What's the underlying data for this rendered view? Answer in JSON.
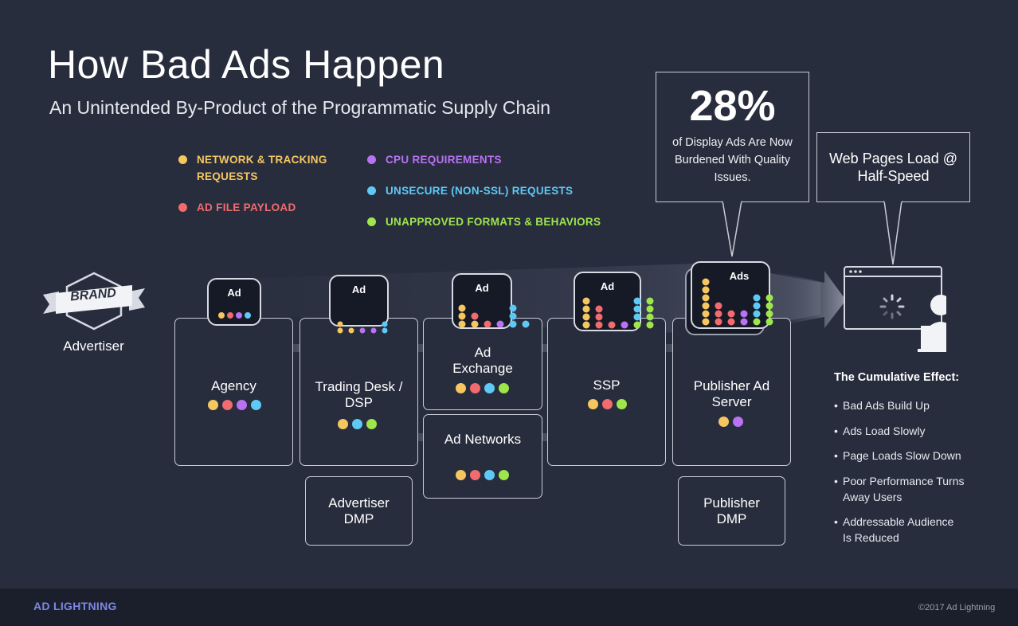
{
  "title": "How Bad Ads Happen",
  "subtitle": "An Unintended By-Product of the Programmatic Supply Chain",
  "colors": {
    "yellow": "#f6c760",
    "red": "#f26b6f",
    "purple": "#b872f2",
    "blue": "#5ec9f5",
    "green": "#9ee64c"
  },
  "legend": [
    {
      "label": "NETWORK & TRACKING REQUESTS",
      "color": "#f6c760"
    },
    {
      "label": "AD FILE PAYLOAD",
      "color": "#f26b6f"
    },
    {
      "label": "CPU REQUIREMENTS",
      "color": "#b872f2"
    },
    {
      "label": "UNSECURE (NON-SSL) REQUESTS",
      "color": "#5ec9f5"
    },
    {
      "label": "UNAPPROVED FORMATS & BEHAVIORS",
      "color": "#9ee64c"
    }
  ],
  "brand": {
    "badge": "BRAND",
    "label": "Advertiser"
  },
  "nodes": {
    "agency": "Agency",
    "trading_desk": "Trading Desk / DSP",
    "ad_exchange": "Ad Exchange",
    "ad_networks": "Ad Networks",
    "ssp": "SSP",
    "publisher_ad_server": "Publisher Ad Server",
    "advertiser_dmp": "Advertiser DMP",
    "publisher_dmp": "Publisher DMP"
  },
  "ad_icons": {
    "small": "Ad",
    "stack": "Ads"
  },
  "stat": {
    "value": "28%",
    "text": "of Display Ads Are Now Burdened With Quality Issues."
  },
  "web_pages": "Web Pages Load @ Half-Speed",
  "cumulative": {
    "heading": "The Cumulative Effect:",
    "items": [
      "Bad Ads Build Up",
      "Ads Load Slowly",
      "Page Loads Slow Down",
      "Poor Performance Turns Away Users",
      "Addressable Audience Is Reduced"
    ]
  },
  "footer": {
    "logo": "AD LIGHTNING",
    "copyright": "©2017 Ad Lightning"
  }
}
